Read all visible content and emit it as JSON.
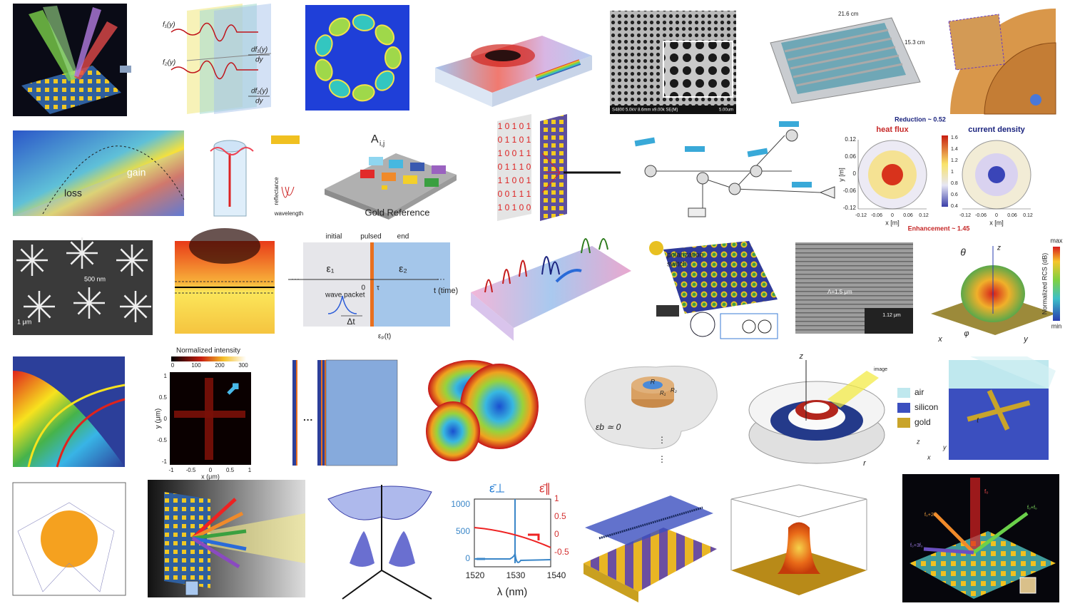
{
  "panels": {
    "derivative": {
      "labels": [
        "f₁(y)",
        "f₂(y)",
        "df₁(y)",
        "dy",
        "df₂(y)",
        "dy"
      ]
    },
    "sem_holes": {
      "labels": [
        "S4800 5.0kV 8.6mm x9.00k SE(M)",
        "5.00um"
      ]
    },
    "device": {
      "labels": [
        "21.6 cm",
        "15.3 cm"
      ]
    },
    "gain_loss": {
      "labels": [
        "gain",
        "loss"
      ]
    },
    "cylinder": {
      "labels": [
        "reflectance",
        "wavelength"
      ]
    },
    "gold_reference": {
      "labels": [
        "A",
        "i,j",
        "Gold Reference"
      ]
    },
    "binary": {
      "rows": [
        "1 0 1 0 1",
        "0 1 1 0 1",
        "1 0 0 1 1",
        "0 1 1 1 0",
        "1 1 0 0 1",
        "0 0 1 1 1",
        "1 0 1 0 0"
      ]
    },
    "heat_flux": {
      "reduction": "Reduction ~ 0.52",
      "left_title": "heat flux",
      "right_title": "current density",
      "y_label": "y [m]",
      "y_ticks": [
        "0.12",
        "0.06",
        "0",
        "-0.06",
        "-0.12"
      ],
      "x_ticks_left": [
        "-0.12",
        "-0.06",
        "0",
        "0.06",
        "0.12"
      ],
      "x_ticks_right": [
        "-0.12",
        "-0.06",
        "0",
        "0.06",
        "0.12"
      ],
      "x_label_left": "x [m]",
      "x_label_right": "x [m]",
      "colorbar_ticks": [
        "1.6",
        "1.4",
        "1.2",
        "1",
        "0.8",
        "0.6",
        "0.4"
      ],
      "enhancement": "Enhancement ~ 1.45"
    },
    "stars": {
      "labels": [
        "500 nm",
        "1 μm"
      ]
    },
    "pulse": {
      "labels": [
        "initial",
        "pulsed",
        "end",
        "ε₁",
        "ε₂",
        "wave packet",
        "Δt",
        "0",
        "τ",
        "t (time)",
        "εₚ(t)",
        "···",
        "···"
      ]
    },
    "polarization": {
      "labels": [
        "polarization",
        "switch"
      ]
    },
    "grating_sem": {
      "labels": [
        "Λ=1.5 μm",
        "1.12 μm"
      ]
    },
    "rcs": {
      "labels": [
        "max",
        "min",
        "Normalized RCS (dB)",
        "θ",
        "z",
        "x",
        "y",
        "φ"
      ]
    },
    "intensity": {
      "title": "Normalized intensity",
      "colorbar_ticks": [
        "0",
        "100",
        "200",
        "300"
      ],
      "y_label": "y (μm)",
      "y_ticks": [
        "1",
        "0.5",
        "0",
        "-0.5",
        "-1"
      ],
      "x_ticks": [
        "-1",
        "-0.5",
        "0",
        "0.5",
        "1"
      ],
      "x_label": "x (μm)"
    },
    "layers": {
      "labels": [
        "···"
      ]
    },
    "shell": {
      "labels": [
        "R",
        "R₁",
        "R₂",
        "εb ≃ 0",
        "⋮",
        "⋮"
      ]
    },
    "ring": {
      "labels": [
        "z",
        "r",
        "image"
      ]
    },
    "materials": {
      "labels": [
        "air",
        "silicon",
        "gold",
        "t",
        "z",
        "y",
        "x"
      ]
    },
    "permittivity": {
      "legend": [
        "ε̄⊥",
        "ε̄∥"
      ],
      "left_ticks": [
        "1000",
        "500",
        "0"
      ],
      "right_ticks": [
        "1",
        "0.5",
        "0",
        "-0.5"
      ],
      "x_ticks": [
        "1520",
        "1530",
        "1540"
      ],
      "x_label": "λ (nm)"
    },
    "harmonics": {
      "labels": [
        "f₀",
        "f₀+2f₀",
        "f₀+f₀",
        "f₀+3f₀"
      ]
    }
  }
}
